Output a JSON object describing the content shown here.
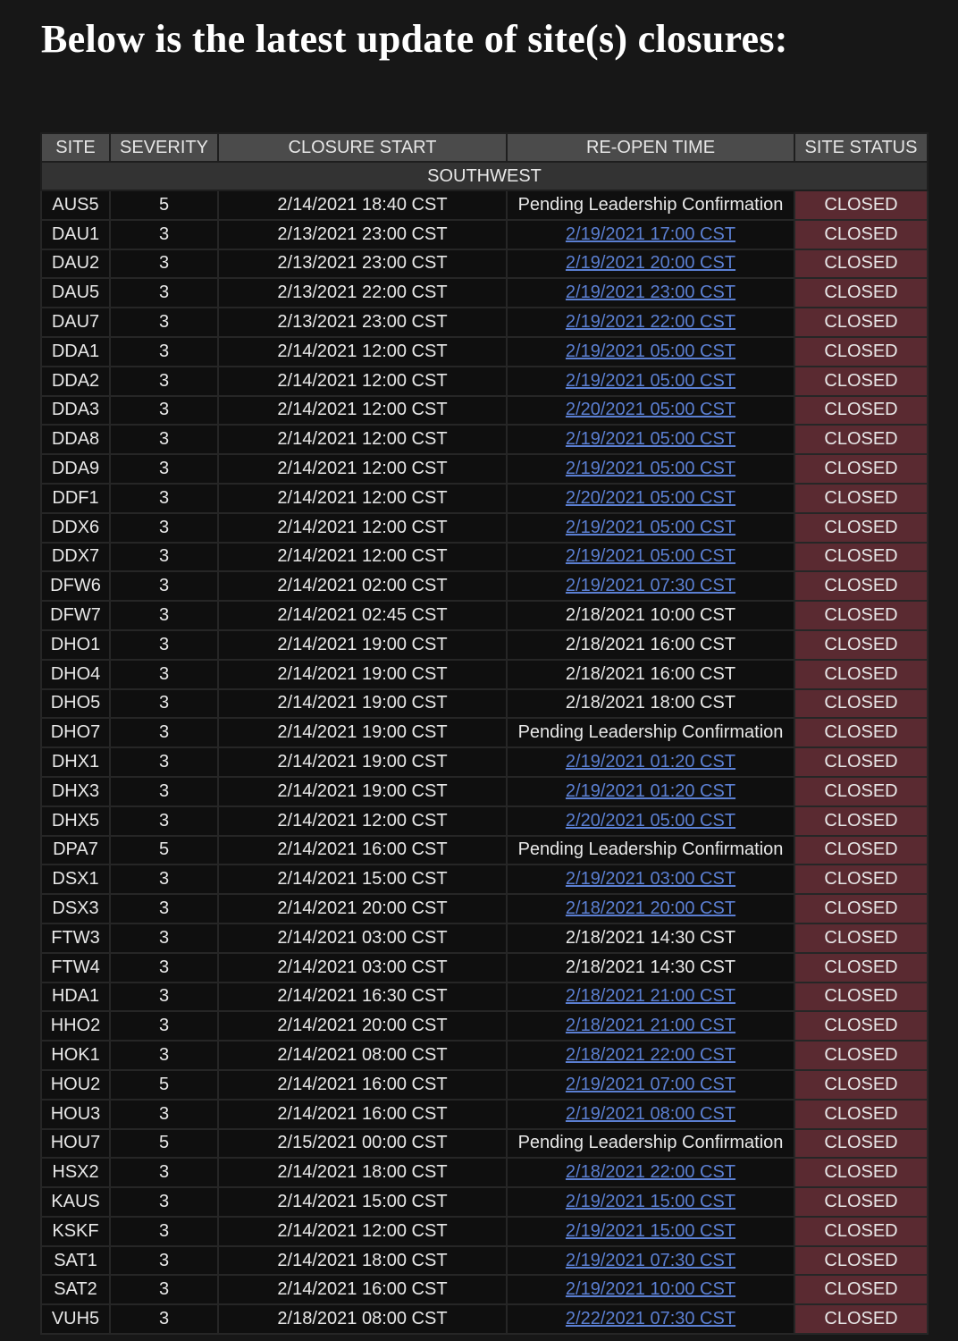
{
  "title": "Below is the latest update of site(s) closures:",
  "columns": [
    "SITE",
    "SEVERITY",
    "CLOSURE START",
    "RE-OPEN TIME",
    "SITE STATUS"
  ],
  "region": "SOUTHWEST",
  "colors": {
    "header": "#4b4b4b",
    "status_closed": "#5a2a31",
    "link": "#5b7fd2"
  },
  "rows": [
    {
      "site": "AUS5",
      "severity": "5",
      "start": "2/14/2021 18:40 CST",
      "reopen": "Pending Leadership Confirmation",
      "link": false,
      "status": "CLOSED"
    },
    {
      "site": "DAU1",
      "severity": "3",
      "start": "2/13/2021 23:00 CST",
      "reopen": "2/19/2021 17:00 CST",
      "link": true,
      "status": "CLOSED"
    },
    {
      "site": "DAU2",
      "severity": "3",
      "start": "2/13/2021 23:00 CST",
      "reopen": "2/19/2021 20:00 CST",
      "link": true,
      "status": "CLOSED"
    },
    {
      "site": "DAU5",
      "severity": "3",
      "start": "2/13/2021 22:00 CST",
      "reopen": "2/19/2021 23:00 CST",
      "link": true,
      "status": "CLOSED"
    },
    {
      "site": "DAU7",
      "severity": "3",
      "start": "2/13/2021 23:00 CST",
      "reopen": "2/19/2021 22:00 CST",
      "link": true,
      "status": "CLOSED"
    },
    {
      "site": "DDA1",
      "severity": "3",
      "start": "2/14/2021 12:00 CST",
      "reopen": "2/19/2021 05:00 CST",
      "link": true,
      "status": "CLOSED"
    },
    {
      "site": "DDA2",
      "severity": "3",
      "start": "2/14/2021 12:00 CST",
      "reopen": "2/19/2021 05:00 CST",
      "link": true,
      "status": "CLOSED"
    },
    {
      "site": "DDA3",
      "severity": "3",
      "start": "2/14/2021 12:00 CST",
      "reopen": "2/20/2021 05:00 CST",
      "link": true,
      "status": "CLOSED"
    },
    {
      "site": "DDA8",
      "severity": "3",
      "start": "2/14/2021 12:00 CST",
      "reopen": "2/19/2021 05:00 CST",
      "link": true,
      "status": "CLOSED"
    },
    {
      "site": "DDA9",
      "severity": "3",
      "start": "2/14/2021 12:00 CST",
      "reopen": "2/19/2021 05:00 CST",
      "link": true,
      "status": "CLOSED"
    },
    {
      "site": "DDF1",
      "severity": "3",
      "start": "2/14/2021 12:00 CST",
      "reopen": "2/20/2021 05:00 CST",
      "link": true,
      "status": "CLOSED"
    },
    {
      "site": "DDX6",
      "severity": "3",
      "start": "2/14/2021 12:00 CST",
      "reopen": "2/19/2021 05:00 CST",
      "link": true,
      "status": "CLOSED"
    },
    {
      "site": "DDX7",
      "severity": "3",
      "start": "2/14/2021 12:00 CST",
      "reopen": "2/19/2021 05:00 CST",
      "link": true,
      "status": "CLOSED"
    },
    {
      "site": "DFW6",
      "severity": "3",
      "start": "2/14/2021 02:00 CST",
      "reopen": "2/19/2021 07:30 CST",
      "link": true,
      "status": "CLOSED"
    },
    {
      "site": "DFW7",
      "severity": "3",
      "start": "2/14/2021 02:45 CST",
      "reopen": "2/18/2021 10:00 CST",
      "link": false,
      "status": "CLOSED"
    },
    {
      "site": "DHO1",
      "severity": "3",
      "start": "2/14/2021 19:00 CST",
      "reopen": "2/18/2021 16:00 CST",
      "link": false,
      "status": "CLOSED"
    },
    {
      "site": "DHO4",
      "severity": "3",
      "start": "2/14/2021 19:00 CST",
      "reopen": "2/18/2021 16:00 CST",
      "link": false,
      "status": "CLOSED"
    },
    {
      "site": "DHO5",
      "severity": "3",
      "start": "2/14/2021 19:00 CST",
      "reopen": "2/18/2021 18:00 CST",
      "link": false,
      "status": "CLOSED"
    },
    {
      "site": "DHO7",
      "severity": "3",
      "start": "2/14/2021 19:00 CST",
      "reopen": "Pending Leadership Confirmation",
      "link": false,
      "status": "CLOSED"
    },
    {
      "site": "DHX1",
      "severity": "3",
      "start": "2/14/2021 19:00 CST",
      "reopen": "2/19/2021 01:20 CST",
      "link": true,
      "status": "CLOSED"
    },
    {
      "site": "DHX3",
      "severity": "3",
      "start": "2/14/2021 19:00 CST",
      "reopen": "2/19/2021 01:20 CST",
      "link": true,
      "status": "CLOSED"
    },
    {
      "site": "DHX5",
      "severity": "3",
      "start": "2/14/2021 12:00 CST",
      "reopen": "2/20/2021 05:00 CST",
      "link": true,
      "status": "CLOSED"
    },
    {
      "site": "DPA7",
      "severity": "5",
      "start": "2/14/2021 16:00 CST",
      "reopen": "Pending Leadership Confirmation",
      "link": false,
      "status": "CLOSED"
    },
    {
      "site": "DSX1",
      "severity": "3",
      "start": "2/14/2021 15:00 CST",
      "reopen": "2/19/2021 03:00 CST",
      "link": true,
      "status": "CLOSED"
    },
    {
      "site": "DSX3",
      "severity": "3",
      "start": "2/14/2021 20:00 CST",
      "reopen": "2/18/2021 20:00 CST",
      "link": true,
      "status": "CLOSED"
    },
    {
      "site": "FTW3",
      "severity": "3",
      "start": "2/14/2021 03:00 CST",
      "reopen": "2/18/2021 14:30 CST",
      "link": false,
      "status": "CLOSED"
    },
    {
      "site": "FTW4",
      "severity": "3",
      "start": "2/14/2021 03:00 CST",
      "reopen": "2/18/2021 14:30 CST",
      "link": false,
      "status": "CLOSED"
    },
    {
      "site": "HDA1",
      "severity": "3",
      "start": "2/14/2021 16:30 CST",
      "reopen": "2/18/2021 21:00 CST",
      "link": true,
      "status": "CLOSED"
    },
    {
      "site": "HHO2",
      "severity": "3",
      "start": "2/14/2021 20:00 CST",
      "reopen": "2/18/2021 21:00 CST",
      "link": true,
      "status": "CLOSED"
    },
    {
      "site": "HOK1",
      "severity": "3",
      "start": "2/14/2021 08:00 CST",
      "reopen": "2/18/2021 22:00 CST",
      "link": true,
      "status": "CLOSED"
    },
    {
      "site": "HOU2",
      "severity": "5",
      "start": "2/14/2021 16:00 CST",
      "reopen": "2/19/2021 07:00 CST",
      "link": true,
      "status": "CLOSED"
    },
    {
      "site": "HOU3",
      "severity": "3",
      "start": "2/14/2021 16:00 CST",
      "reopen": "2/19/2021 08:00 CST",
      "link": true,
      "status": "CLOSED"
    },
    {
      "site": "HOU7",
      "severity": "5",
      "start": "2/15/2021 00:00 CST",
      "reopen": "Pending Leadership Confirmation",
      "link": false,
      "status": "CLOSED"
    },
    {
      "site": "HSX2",
      "severity": "3",
      "start": "2/14/2021 18:00 CST",
      "reopen": "2/18/2021 22:00 CST",
      "link": true,
      "status": "CLOSED"
    },
    {
      "site": "KAUS",
      "severity": "3",
      "start": "2/14/2021 15:00 CST",
      "reopen": "2/19/2021 15:00 CST",
      "link": true,
      "status": "CLOSED"
    },
    {
      "site": "KSKF",
      "severity": "3",
      "start": "2/14/2021 12:00 CST",
      "reopen": "2/19/2021 15:00 CST",
      "link": true,
      "status": "CLOSED"
    },
    {
      "site": "SAT1",
      "severity": "3",
      "start": "2/14/2021 18:00 CST",
      "reopen": "2/19/2021 07:30 CST",
      "link": true,
      "status": "CLOSED"
    },
    {
      "site": "SAT2",
      "severity": "3",
      "start": "2/14/2021 16:00 CST",
      "reopen": "2/19/2021 10:00 CST",
      "link": true,
      "status": "CLOSED"
    },
    {
      "site": "VUH5",
      "severity": "3",
      "start": "2/18/2021 08:00 CST",
      "reopen": "2/22/2021 07:30 CST",
      "link": true,
      "status": "CLOSED"
    }
  ]
}
